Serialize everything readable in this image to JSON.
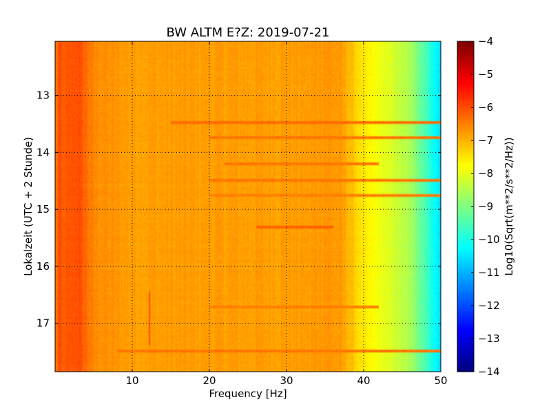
{
  "chart_data": {
    "type": "heatmap",
    "title": "BW ALTM E?Z: 2019-07-21",
    "xlabel": "Frequency [Hz]",
    "ylabel": "Lokalzeit (UTC + 2 Stunde)",
    "colorbar_label": "Log10(Sqrt(m**2/s**2/Hz))",
    "xlim": [
      0,
      50
    ],
    "ylim": [
      17.85,
      12.05
    ],
    "x_ticks": [
      10,
      20,
      30,
      40,
      50
    ],
    "y_ticks": [
      13,
      14,
      15,
      16,
      17
    ],
    "colorbar_range": [
      -14,
      -4
    ],
    "colorbar_ticks": [
      -4,
      -5,
      -6,
      -7,
      -8,
      -9,
      -10,
      -11,
      -12,
      -13,
      -14
    ],
    "colormap": "jet",
    "grid": true,
    "value_profile": {
      "freq_hz": [
        0,
        0.5,
        1,
        2,
        3,
        4,
        5,
        7,
        10,
        15,
        20,
        25,
        30,
        33,
        35,
        37,
        38,
        39,
        40,
        42,
        44,
        46,
        47,
        48,
        49,
        50
      ],
      "log10_amplitude": [
        -6.6,
        -6.0,
        -6.2,
        -6.1,
        -6.0,
        -6.3,
        -6.6,
        -6.7,
        -6.8,
        -6.8,
        -6.8,
        -6.8,
        -6.8,
        -6.8,
        -6.7,
        -6.8,
        -7.0,
        -7.3,
        -7.6,
        -7.9,
        -8.2,
        -8.6,
        -9.0,
        -9.5,
        -10.1,
        -10.6
      ]
    },
    "bands": [
      {
        "t": 13.48,
        "f_start": 15,
        "f_end": 50,
        "value": -6.3
      },
      {
        "t": 13.74,
        "f_start": 20,
        "f_end": 50,
        "value": -6.4
      },
      {
        "t": 14.2,
        "f_start": 22,
        "f_end": 42,
        "value": -6.4
      },
      {
        "t": 14.5,
        "f_start": 20,
        "f_end": 50,
        "value": -6.4
      },
      {
        "t": 14.75,
        "f_start": 20,
        "f_end": 50,
        "value": -6.5
      },
      {
        "t": 15.32,
        "f_start": 26,
        "f_end": 36,
        "value": -6.2
      },
      {
        "t": 16.72,
        "f_start": 20,
        "f_end": 42,
        "value": -6.5
      },
      {
        "t": 17.48,
        "f_start": 8,
        "f_end": 50,
        "value": -6.4
      }
    ],
    "vertical_line": {
      "freq_hz": 12.2,
      "t_start": 16.45,
      "t_end": 17.4,
      "value": -6.0
    }
  }
}
